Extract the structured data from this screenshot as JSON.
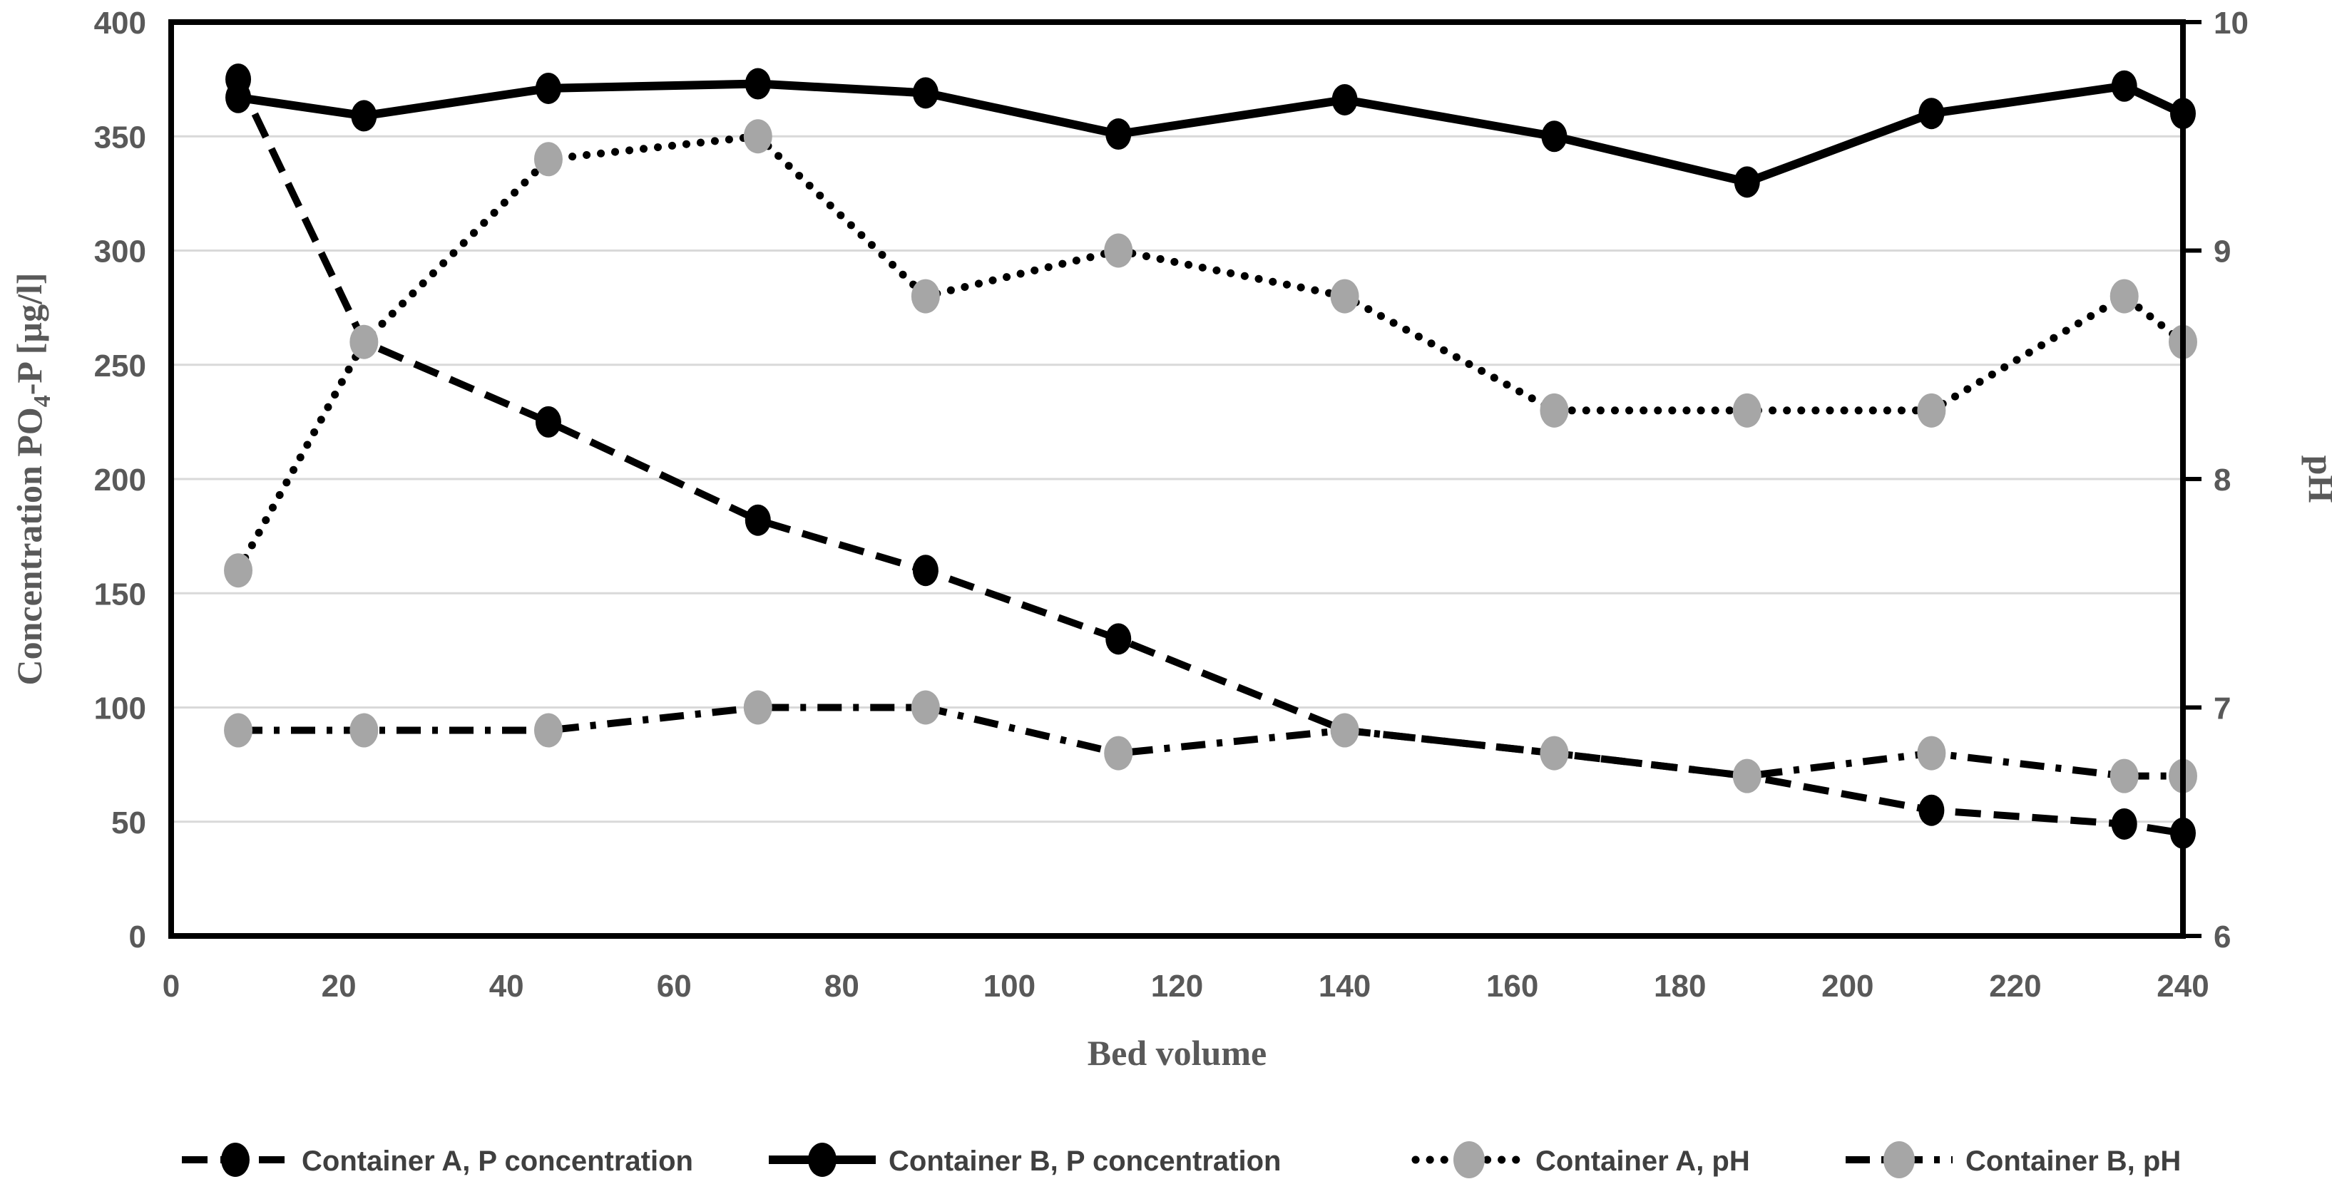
{
  "chart_data": {
    "type": "line",
    "title": "",
    "x_axis": {
      "label": "Bed volume",
      "min": 0,
      "max": 240,
      "tick_step": 20,
      "tick_labels": [
        "0",
        "20",
        "40",
        "60",
        "80",
        "100",
        "120",
        "140",
        "160",
        "180",
        "200",
        "220",
        "240"
      ]
    },
    "y_left": {
      "label_pre": "Concentration PO",
      "label_sub": "4",
      "label_post": "-P [µg/l]",
      "min": 0,
      "max": 400,
      "tick_step": 50,
      "tick_labels": [
        "0",
        "50",
        "100",
        "150",
        "200",
        "250",
        "300",
        "350",
        "400"
      ]
    },
    "y_right": {
      "label": "pH",
      "min": 6,
      "max": 10,
      "tick_step": 1,
      "tick_labels": [
        "6",
        "7",
        "8",
        "9",
        "10"
      ]
    },
    "grid": true,
    "legend_position": "bottom",
    "x": [
      8,
      23,
      45,
      70,
      90,
      113,
      140,
      165,
      188,
      210,
      233,
      240
    ],
    "series": [
      {
        "name": "Container A, P concentration",
        "axis": "left",
        "style": "dashed",
        "line_color": "#000000",
        "marker_color": "#000000",
        "values": [
          375,
          260,
          225,
          182,
          160,
          130,
          90,
          80,
          70,
          55,
          49,
          45
        ]
      },
      {
        "name": "Container B, P concentration",
        "axis": "left",
        "style": "solid",
        "line_color": "#000000",
        "marker_color": "#000000",
        "values": [
          367,
          359,
          371,
          373,
          369,
          351,
          366,
          350,
          330,
          360,
          372,
          360
        ]
      },
      {
        "name": "Container A, pH",
        "axis": "right",
        "style": "dotted",
        "line_color": "#000000",
        "marker_color": "#a6a6a6",
        "values": [
          7.6,
          8.6,
          9.4,
          9.5,
          8.8,
          9.0,
          8.8,
          8.3,
          8.3,
          8.3,
          8.8,
          8.6
        ]
      },
      {
        "name": "Container B, pH",
        "axis": "right",
        "style": "dashdot",
        "line_color": "#000000",
        "marker_color": "#a6a6a6",
        "values": [
          6.9,
          6.9,
          6.9,
          7.0,
          7.0,
          6.8,
          6.9,
          6.8,
          6.7,
          6.8,
          6.7,
          6.7
        ]
      }
    ],
    "colors": {
      "gridline": "#d9d9d9",
      "frame": "#000000",
      "tick_label": "#595959",
      "axis_title": "#595959",
      "legend_text": "#3f3f3f",
      "gray_marker": "#a6a6a6",
      "background": "#ffffff"
    }
  }
}
